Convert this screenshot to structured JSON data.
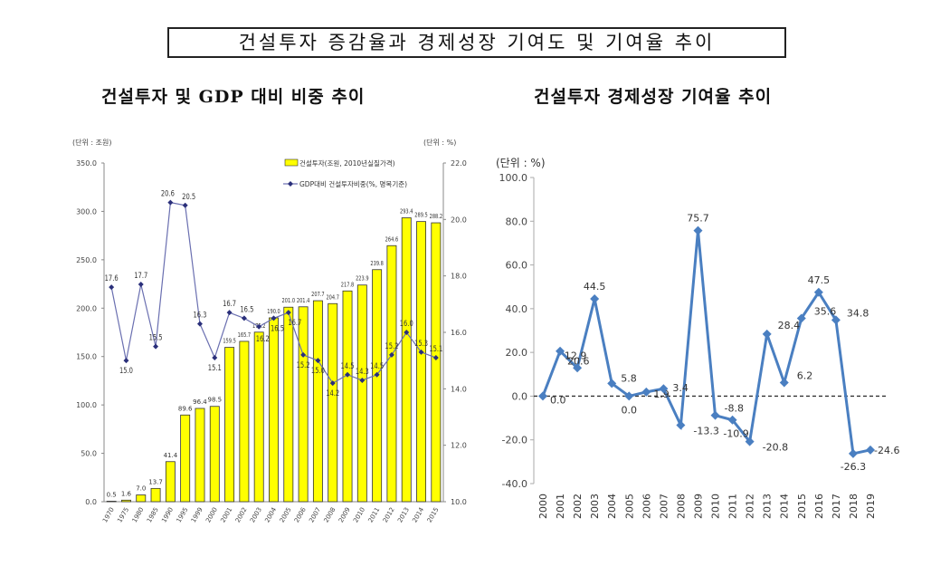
{
  "title": "건설투자 증감율과 경제성장 기여도 및 기여율 추이",
  "chart_data": [
    {
      "type": "bar+line",
      "title": "건설투자 및 GDP 대비 비중 추이",
      "y_unit_left": "(단위 : 조원)",
      "y_unit_right": "(단위 : %)",
      "ylim_left": [
        0,
        350
      ],
      "yticks_left": [
        "0.0",
        "50.0",
        "100.0",
        "150.0",
        "200.0",
        "250.0",
        "300.0",
        "350.0"
      ],
      "ylim_right": [
        10,
        22
      ],
      "yticks_right": [
        "10.0",
        "12.0",
        "14.0",
        "16.0",
        "18.0",
        "20.0",
        "22.0"
      ],
      "categories": [
        "1970",
        "1975",
        "1980",
        "1985",
        "1990",
        "1995",
        "1999",
        "2000",
        "2001",
        "2002",
        "2003",
        "2004",
        "2005",
        "2006",
        "2007",
        "2008",
        "2009",
        "2010",
        "2011",
        "2012",
        "2013",
        "2014",
        "2015"
      ],
      "series": [
        {
          "name": "건설투자(조원, 2010년실질가격)",
          "type": "bar",
          "axis": "left",
          "color": "#ffff00",
          "values": [
            0.5,
            1.6,
            7.0,
            13.7,
            41.4,
            89.6,
            96.4,
            98.5,
            159.5,
            165.7,
            175.2,
            190.0,
            201.0,
            201.4,
            207.7,
            204.7,
            217.8,
            223.9,
            239.8,
            264.6,
            293.4,
            289.5,
            288.2
          ]
        },
        {
          "name": "GDP대비 건설투자비중(%, 명목기준)",
          "type": "line",
          "axis": "right",
          "color": "#2a2f7a",
          "values": [
            17.6,
            15.0,
            17.7,
            15.5,
            20.6,
            20.5,
            16.3,
            15.1,
            16.7,
            16.5,
            16.2,
            16.5,
            16.7,
            15.2,
            15.0,
            14.2,
            14.5,
            14.3,
            14.5,
            15.2,
            16.0,
            15.3,
            15.1
          ]
        }
      ],
      "legend": "top-right"
    },
    {
      "type": "line",
      "title": "건설투자 경제성장 기여율 추이",
      "y_unit": "(단위 : %)",
      "ylim": [
        -40,
        100
      ],
      "yticks": [
        "-40.0",
        "-20.0",
        "0.0",
        "20.0",
        "40.0",
        "60.0",
        "80.0",
        "100.0"
      ],
      "categories": [
        "2000",
        "2001",
        "2002",
        "2003",
        "2004",
        "2005",
        "2006",
        "2007",
        "2008",
        "2009",
        "2010",
        "2011",
        "2012",
        "2013",
        "2014",
        "2015",
        "2016",
        "2017",
        "2018",
        "2019"
      ],
      "values": [
        0.0,
        20.6,
        12.9,
        44.5,
        5.8,
        0.0,
        1.9,
        3.4,
        -13.3,
        75.7,
        -8.8,
        -10.9,
        -20.8,
        28.4,
        6.2,
        35.6,
        47.5,
        34.8,
        -26.3,
        -24.6
      ],
      "data_labels": [
        "0.0",
        "20.6",
        "12.9",
        "44.5",
        "5.8",
        "0.0",
        "1.9",
        "3.4",
        "-13.3",
        "75.7",
        "-8.8",
        "-10.9",
        "-20.8",
        "28.4",
        "6.2",
        "35.6",
        "47.5",
        "34.8",
        "-26.3",
        "-24.6"
      ],
      "color": "#4a7fc1",
      "zero_line": "dashed"
    }
  ]
}
